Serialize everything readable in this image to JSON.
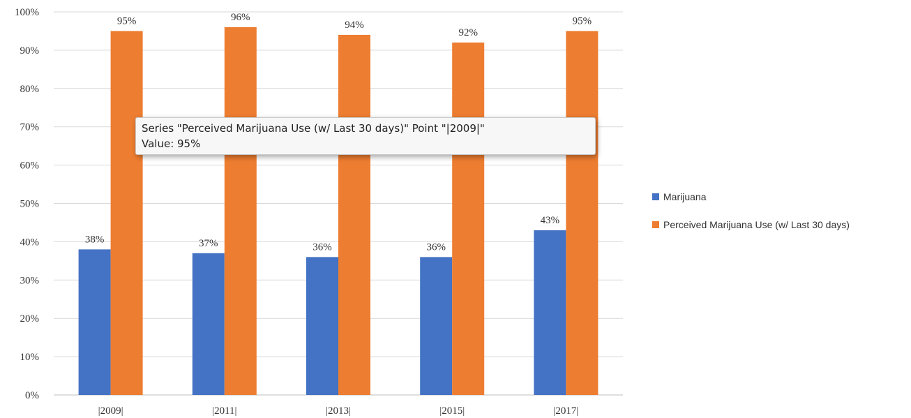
{
  "chart_data": {
    "type": "bar",
    "categories": [
      "|2009|",
      "|2011|",
      "|2013|",
      "|2015|",
      "|2017|"
    ],
    "series": [
      {
        "name": "Marijuana",
        "color": "#4472c4",
        "values": [
          38,
          37,
          36,
          36,
          43
        ],
        "labels": [
          "38%",
          "37%",
          "36%",
          "36%",
          "43%"
        ]
      },
      {
        "name": "Perceived Marijuana Use (w/ Last 30 days)",
        "color": "#ed7d31",
        "values": [
          95,
          96,
          94,
          92,
          95
        ],
        "labels": [
          "95%",
          "96%",
          "94%",
          "92%",
          "95%"
        ]
      }
    ],
    "yticks": [
      "0%",
      "10%",
      "20%",
      "30%",
      "40%",
      "50%",
      "60%",
      "70%",
      "80%",
      "90%",
      "100%"
    ],
    "ylim": [
      0,
      100
    ],
    "grid": true,
    "legend_position": "right"
  },
  "tooltip": {
    "line1": "Series \"Perceived Marijuana Use (w/ Last 30 days)\" Point \"|2009|\"",
    "line2": "Value: 95%"
  }
}
